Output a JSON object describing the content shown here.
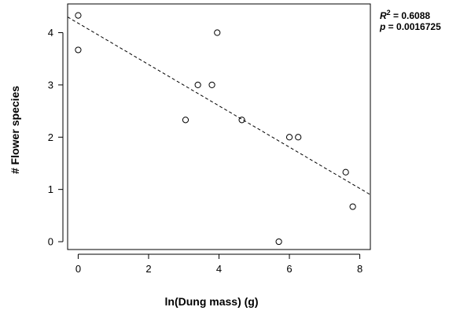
{
  "chart_data": {
    "type": "scatter",
    "xlabel": "ln(Dung mass) (g)",
    "ylabel": "# Flower species",
    "xlim": [
      -0.3,
      8.3
    ],
    "ylim": [
      -0.15,
      4.55
    ],
    "x_ticks": [
      0,
      2,
      4,
      6,
      8
    ],
    "y_ticks": [
      0,
      1,
      2,
      3,
      4
    ],
    "grid": false,
    "points": [
      {
        "x": 0.0,
        "y": 4.33
      },
      {
        "x": 0.0,
        "y": 3.67
      },
      {
        "x": 3.05,
        "y": 2.33
      },
      {
        "x": 3.4,
        "y": 3.0
      },
      {
        "x": 3.8,
        "y": 3.0
      },
      {
        "x": 3.95,
        "y": 4.0
      },
      {
        "x": 4.65,
        "y": 2.33
      },
      {
        "x": 5.7,
        "y": 0.0
      },
      {
        "x": 6.0,
        "y": 2.0
      },
      {
        "x": 6.25,
        "y": 2.0
      },
      {
        "x": 7.6,
        "y": 1.33
      },
      {
        "x": 7.8,
        "y": 0.67
      }
    ],
    "trendline": {
      "style": "dashed",
      "x": [
        -0.3,
        8.3
      ],
      "y": [
        4.3,
        0.9
      ]
    },
    "annotation": {
      "r2_label": "R",
      "r2_sup": "2",
      "r2_value": " = 0.6088",
      "p_label": "p",
      "p_value": " = 0.0016725"
    }
  }
}
